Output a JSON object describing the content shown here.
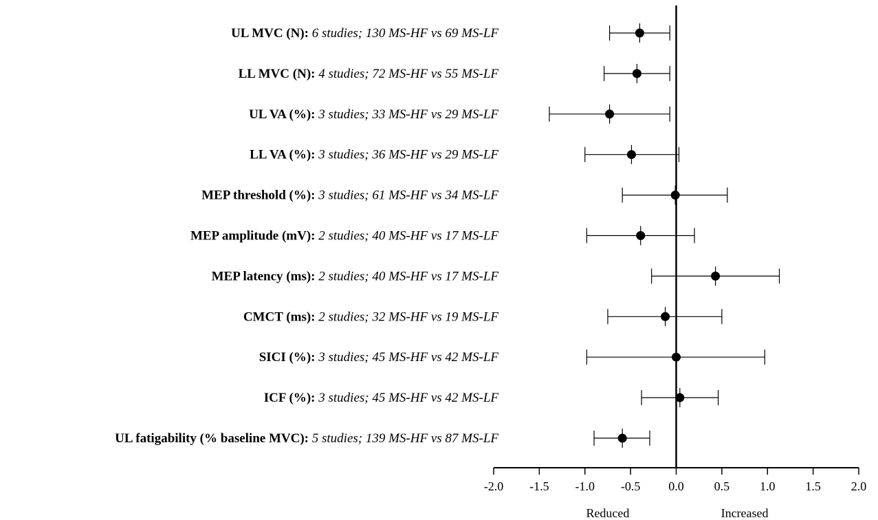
{
  "chart_data": {
    "type": "forest",
    "title": "",
    "xlabel": "",
    "ylabel": "",
    "xlim": [
      -2.0,
      2.0
    ],
    "xticks": [
      -2.0,
      -1.5,
      -1.0,
      -0.5,
      0.0,
      0.5,
      1.0,
      1.5,
      2.0
    ],
    "xtick_labels": [
      "-2.0",
      "-1.5",
      "-1.0",
      "-0.5",
      "0.0",
      "0.5",
      "1.0",
      "1.5",
      "2.0"
    ],
    "direction_labels": {
      "left": "Reduced",
      "right": "Increased"
    },
    "reference_line": 0.0,
    "grid": false,
    "rows": [
      {
        "label": "UL MVC (N):",
        "detail": "6 studies; 130 MS-HF vs 69 MS-LF",
        "estimate": -0.4,
        "lower": -0.73,
        "upper": -0.07
      },
      {
        "label": "LL MVC (N):",
        "detail": "4 studies; 72 MS-HF vs 55 MS-LF",
        "estimate": -0.43,
        "lower": -0.79,
        "upper": -0.07
      },
      {
        "label": "UL VA (%):",
        "detail": "3 studies; 33 MS-HF vs 29 MS-LF",
        "estimate": -0.73,
        "lower": -1.39,
        "upper": -0.07
      },
      {
        "label": "LL VA (%):",
        "detail": "3 studies; 36 MS-HF vs 29 MS-LF",
        "estimate": -0.49,
        "lower": -1.0,
        "upper": 0.03
      },
      {
        "label": "MEP threshold (%):",
        "detail": "3 studies; 61 MS-HF vs 34 MS-LF",
        "estimate": -0.01,
        "lower": -0.59,
        "upper": 0.56
      },
      {
        "label": "MEP amplitude (mV):",
        "detail": "2 studies; 40 MS-HF vs 17 MS-LF",
        "estimate": -0.39,
        "lower": -0.98,
        "upper": 0.2
      },
      {
        "label": "MEP latency (ms):",
        "detail": "2 studies; 40 MS-HF vs 17 MS-LF",
        "estimate": 0.43,
        "lower": -0.27,
        "upper": 1.13
      },
      {
        "label": "CMCT (ms):",
        "detail": "2 studies; 32 MS-HF vs 19 MS-LF",
        "estimate": -0.12,
        "lower": -0.75,
        "upper": 0.5
      },
      {
        "label": "SICI (%):",
        "detail": "3 studies; 45 MS-HF vs 42 MS-LF",
        "estimate": 0.0,
        "lower": -0.98,
        "upper": 0.97
      },
      {
        "label": "ICF (%):",
        "detail": "3 studies; 45 MS-HF vs 42 MS-LF",
        "estimate": 0.04,
        "lower": -0.38,
        "upper": 0.46
      },
      {
        "label": "UL fatigability (% baseline MVC):",
        "detail": "5 studies; 139 MS-HF vs 87 MS-LF",
        "estimate": -0.59,
        "lower": -0.9,
        "upper": -0.29
      }
    ]
  }
}
